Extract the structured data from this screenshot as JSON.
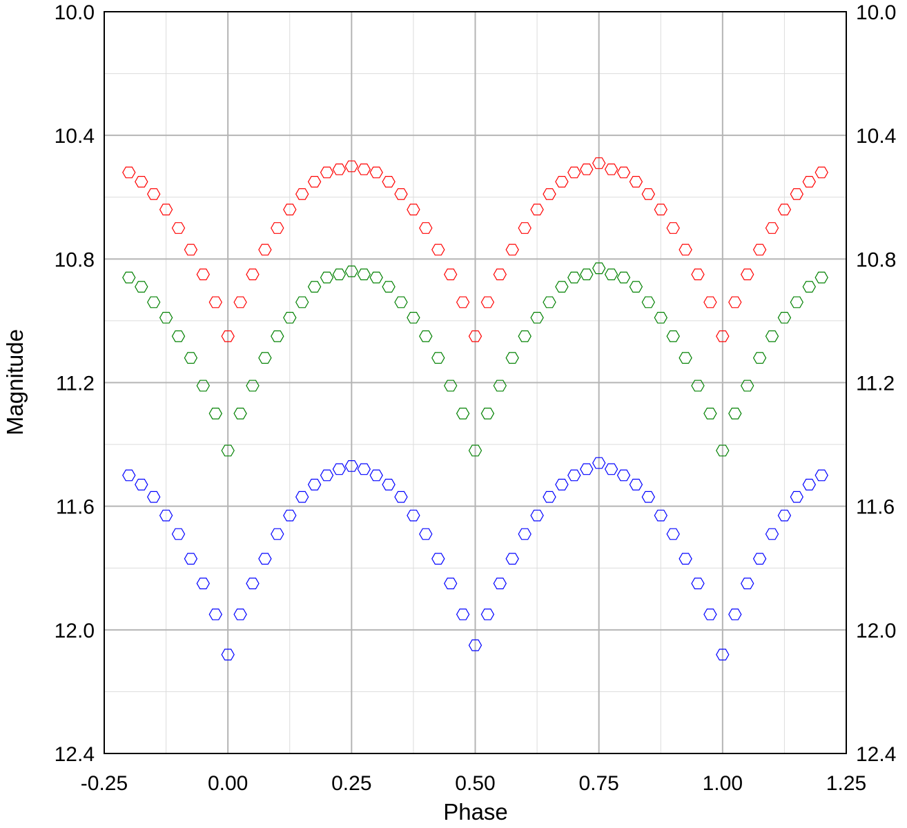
{
  "chart_data": {
    "type": "scatter",
    "title": "",
    "xlabel": "Phase",
    "ylabel": "Magnitude",
    "xlim": [
      -0.25,
      1.25
    ],
    "ylim": [
      10.0,
      12.4
    ],
    "y_inverted": true,
    "grid": true,
    "legend": "none",
    "marker": "hexagon-open",
    "x_ticks": [
      "-0.25",
      "0.00",
      "0.25",
      "0.50",
      "0.75",
      "1.00",
      "1.25"
    ],
    "y_ticks": [
      "10.0",
      "10.4",
      "10.8",
      "11.2",
      "11.6",
      "12.0",
      "12.4"
    ],
    "x": [
      -0.2,
      -0.175,
      -0.15,
      -0.125,
      -0.1,
      -0.075,
      -0.05,
      -0.025,
      0,
      0.025,
      0.05,
      0.075,
      0.1,
      0.125,
      0.15,
      0.175,
      0.2,
      0.225,
      0.25,
      0.275,
      0.3,
      0.325,
      0.35,
      0.375,
      0.4,
      0.425,
      0.45,
      0.475,
      0.5,
      0.525,
      0.55,
      0.575,
      0.6,
      0.625,
      0.65,
      0.675,
      0.7,
      0.725,
      0.75,
      0.775,
      0.8,
      0.825,
      0.85,
      0.875,
      0.9,
      0.925,
      0.95,
      0.975,
      1.0,
      1.025,
      1.05,
      1.075,
      1.1,
      1.125,
      1.15,
      1.175,
      1.2
    ],
    "series": [
      {
        "color": "#ff0000",
        "values": [
          10.52,
          10.55,
          10.59,
          10.64,
          10.7,
          10.77,
          10.85,
          10.94,
          11.05,
          10.94,
          10.85,
          10.77,
          10.7,
          10.64,
          10.59,
          10.55,
          10.52,
          10.51,
          10.5,
          10.51,
          10.52,
          10.55,
          10.59,
          10.64,
          10.7,
          10.77,
          10.85,
          10.94,
          11.05,
          10.94,
          10.85,
          10.77,
          10.7,
          10.64,
          10.59,
          10.55,
          10.52,
          10.51,
          10.49,
          10.51,
          10.52,
          10.55,
          10.59,
          10.64,
          10.7,
          10.77,
          10.85,
          10.94,
          11.05,
          10.94,
          10.85,
          10.77,
          10.7,
          10.64,
          10.59,
          10.55,
          10.52
        ]
      },
      {
        "color": "#008000",
        "values": [
          10.86,
          10.89,
          10.94,
          10.99,
          11.05,
          11.12,
          11.21,
          11.3,
          11.42,
          11.3,
          11.21,
          11.12,
          11.05,
          10.99,
          10.94,
          10.89,
          10.86,
          10.85,
          10.84,
          10.85,
          10.86,
          10.89,
          10.94,
          10.99,
          11.05,
          11.12,
          11.21,
          11.3,
          11.42,
          11.3,
          11.21,
          11.12,
          11.05,
          10.99,
          10.94,
          10.89,
          10.86,
          10.85,
          10.83,
          10.85,
          10.86,
          10.89,
          10.94,
          10.99,
          11.05,
          11.12,
          11.21,
          11.3,
          11.42,
          11.3,
          11.21,
          11.12,
          11.05,
          10.99,
          10.94,
          10.89,
          10.86
        ]
      },
      {
        "color": "#0000ff",
        "values": [
          11.5,
          11.53,
          11.57,
          11.63,
          11.69,
          11.77,
          11.85,
          11.95,
          12.08,
          11.95,
          11.85,
          11.77,
          11.69,
          11.63,
          11.57,
          11.53,
          11.5,
          11.48,
          11.47,
          11.48,
          11.5,
          11.53,
          11.57,
          11.63,
          11.69,
          11.77,
          11.85,
          11.95,
          12.05,
          11.95,
          11.85,
          11.77,
          11.69,
          11.63,
          11.57,
          11.53,
          11.5,
          11.48,
          11.46,
          11.48,
          11.5,
          11.53,
          11.57,
          11.63,
          11.69,
          11.77,
          11.85,
          11.95,
          12.08,
          11.95,
          11.85,
          11.77,
          11.69,
          11.63,
          11.57,
          11.53,
          11.5
        ]
      }
    ]
  }
}
